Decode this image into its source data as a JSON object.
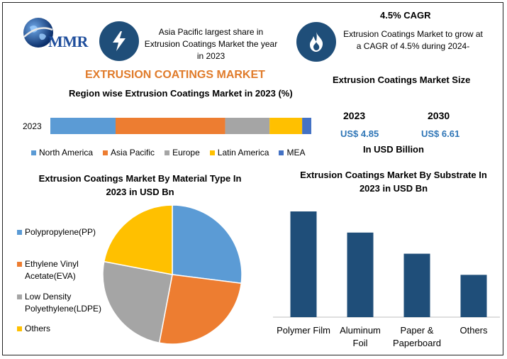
{
  "header": {
    "logo_text": "MMR",
    "highlight_left": "Asia Pacific largest share in Extrusion Coatings Market the year in 2023",
    "cagr_title": "4.5% CAGR",
    "cagr_text": "Extrusion Coatings Market to grow at a CAGR of 4.5% during 2024-",
    "main_title": "EXTRUSION COATINGS MARKET"
  },
  "colors": {
    "north_america": "#5b9bd5",
    "asia_pacific": "#ed7d31",
    "europe": "#a5a5a5",
    "latin_america": "#ffc000",
    "mea": "#4472c4",
    "bar_dark": "#1f4e79",
    "accent_orange": "#e07b2a",
    "value_blue": "#2e75b6"
  },
  "icons": [
    "globe-icon",
    "lightning-icon",
    "flame-icon"
  ],
  "market_size": {
    "title": "Extrusion Coatings Market Size",
    "year_a": "2023",
    "value_a": "US$ 4.85",
    "year_b": "2030",
    "value_b": "US$ 6.61",
    "unit": "In USD Billion"
  },
  "chart_data": [
    {
      "type": "bar",
      "orientation": "horizontal-stacked",
      "title": "Region wise Extrusion Coatings Market in 2023 (%)",
      "categories": [
        "2023"
      ],
      "series": [
        {
          "name": "North America",
          "values": [
            25
          ]
        },
        {
          "name": "Asia Pacific",
          "values": [
            42
          ]
        },
        {
          "name": "Europe",
          "values": [
            17
          ]
        },
        {
          "name": "Latin America",
          "values": [
            12.5
          ]
        },
        {
          "name": "MEA",
          "values": [
            3.5
          ]
        }
      ],
      "legend": "bottom"
    },
    {
      "type": "pie",
      "title": "Extrusion Coatings Market By Material Type In 2023 in USD Bn",
      "labels": [
        "Polypropylene(PP)",
        "Ethylene Vinyl Acetate(EVA)",
        "Low Density Polyethylene(LDPE)",
        "Others"
      ],
      "legend_lines": [
        [
          "Polypropylene(PP)"
        ],
        [
          "Ethylene Vinyl",
          "Acetate(EVA)"
        ],
        [
          "Low Density",
          "Polyethylene(LDPE)"
        ],
        [
          "Others"
        ]
      ],
      "values": [
        27,
        26,
        25,
        22
      ],
      "legend": "left"
    },
    {
      "type": "bar",
      "title": "Extrusion Coatings Market By Substrate In 2023 in USD Bn",
      "categories": [
        "Polymer Film",
        "Aluminum Foil",
        "Paper & Paperboard",
        "Others"
      ],
      "category_lines": [
        [
          "Polymer Film"
        ],
        [
          "Aluminum",
          "Foil"
        ],
        [
          "Paper &",
          "Paperboard"
        ],
        [
          "Others"
        ]
      ],
      "values": [
        1.5,
        1.2,
        0.9,
        0.6
      ],
      "ylim": [
        0,
        1.5
      ]
    }
  ]
}
